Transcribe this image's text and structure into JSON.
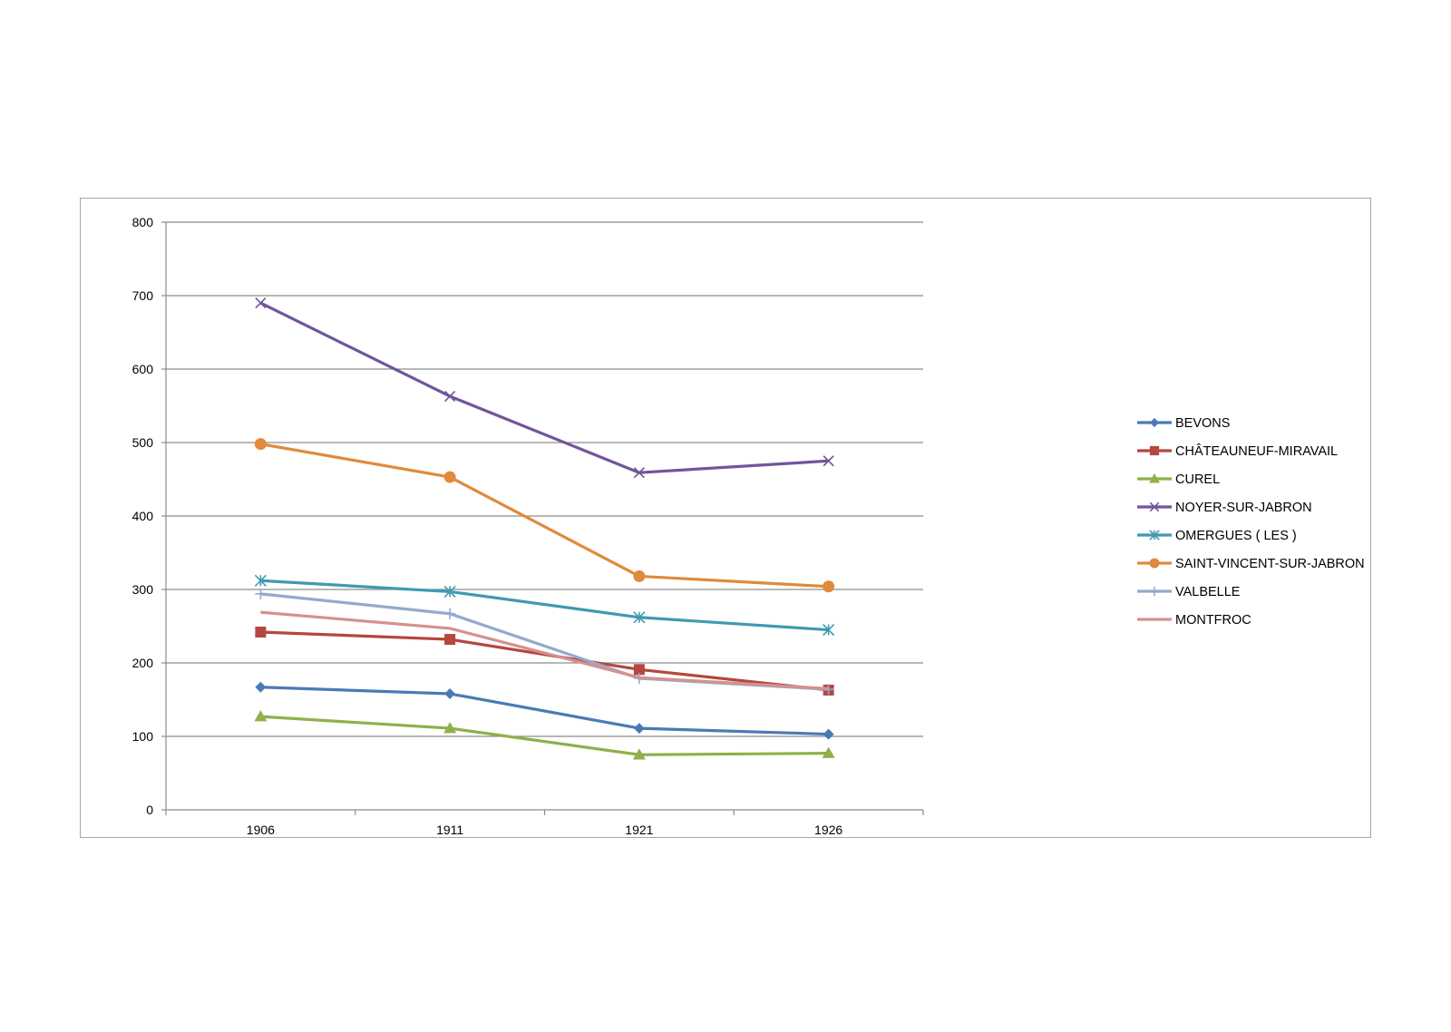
{
  "chart_data": {
    "type": "line",
    "title": "",
    "xlabel": "",
    "ylabel": "",
    "categories": [
      "1906",
      "1911",
      "1921",
      "1926"
    ],
    "ylim": [
      0,
      800
    ],
    "yticks": [
      0,
      100,
      200,
      300,
      400,
      500,
      600,
      700,
      800
    ],
    "grid": true,
    "legend_position": "right",
    "series": [
      {
        "name": "BEVONS",
        "values": [
          167,
          158,
          111,
          103
        ],
        "color": "#4a7ab5",
        "marker": "diamond"
      },
      {
        "name": "CHÂTEAUNEUF-MIRAVAIL",
        "values": [
          242,
          232,
          191,
          163
        ],
        "color": "#b5473f",
        "marker": "square"
      },
      {
        "name": "CUREL",
        "values": [
          127,
          111,
          75,
          77
        ],
        "color": "#8fb04a",
        "marker": "triangle"
      },
      {
        "name": "NOYER-SUR-JABRON",
        "values": [
          690,
          563,
          459,
          475
        ],
        "color": "#71559a",
        "marker": "x"
      },
      {
        "name": "OMERGUES ( LES )",
        "values": [
          312,
          297,
          262,
          245
        ],
        "color": "#3f9ab0",
        "marker": "star"
      },
      {
        "name": "SAINT-VINCENT-SUR-JABRON",
        "values": [
          498,
          453,
          318,
          304
        ],
        "color": "#e08a3c",
        "marker": "circle"
      },
      {
        "name": "VALBELLE",
        "values": [
          294,
          267,
          179,
          164
        ],
        "color": "#93aace",
        "marker": "plus"
      },
      {
        "name": "MONTFROC",
        "values": [
          269,
          247,
          180,
          165
        ],
        "color": "#d4918e",
        "marker": "none"
      }
    ]
  }
}
